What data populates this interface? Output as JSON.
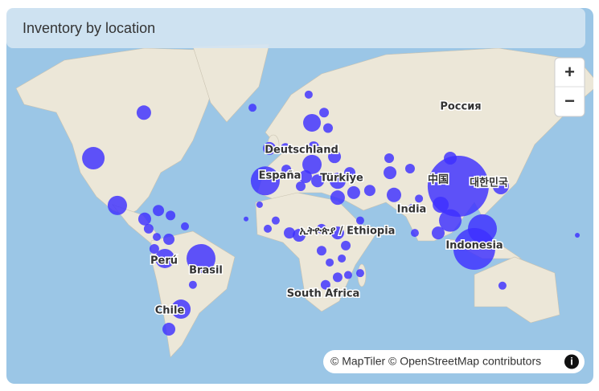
{
  "header": {
    "title": "Inventory by location"
  },
  "controls": {
    "zoom_in": "+",
    "zoom_out": "−",
    "info": "i"
  },
  "attribution": "© MapTiler © OpenStreetMap contributors",
  "map": {
    "labels": [
      "Россия",
      "Deutschland",
      "España",
      "Türkiye",
      "中国",
      "대한민국",
      "India",
      "ኢትዮጵያ / Ethiopia",
      "Indonesia",
      "Perú",
      "Brasil",
      "Chile",
      "South Africa"
    ],
    "bubble_color": "#3d30ff",
    "bubbles": [
      {
        "lon": -84.5,
        "lat": 63.3,
        "size": 9
      },
      {
        "lon": -115,
        "lat": 48,
        "size": 14
      },
      {
        "lon": -100.5,
        "lat": 25.4,
        "size": 12
      },
      {
        "lon": -18.9,
        "lat": 64.6,
        "size": 5
      },
      {
        "lon": 15,
        "lat": 67.8,
        "size": 5
      },
      {
        "lon": 17,
        "lat": 60.4,
        "size": 11
      },
      {
        "lon": 24.3,
        "lat": 63.3,
        "size": 6
      },
      {
        "lon": 26.7,
        "lat": 58.8,
        "size": 6
      },
      {
        "lon": -8.7,
        "lat": 51.8,
        "size": 8
      },
      {
        "lon": 1,
        "lat": 52,
        "size": 6
      },
      {
        "lon": 18,
        "lat": 52.3,
        "size": 7
      },
      {
        "lon": 17,
        "lat": 45.4,
        "size": 12
      },
      {
        "lon": 30.6,
        "lat": 48.6,
        "size": 8
      },
      {
        "lon": -11.2,
        "lat": 38,
        "size": 18
      },
      {
        "lon": 1.5,
        "lat": 43.2,
        "size": 6
      },
      {
        "lon": 13.1,
        "lat": 40,
        "size": 8
      },
      {
        "lon": 10.2,
        "lat": 35.4,
        "size": 6
      },
      {
        "lon": 20.4,
        "lat": 38,
        "size": 8
      },
      {
        "lon": 32.5,
        "lat": 38,
        "size": 10
      },
      {
        "lon": 39.8,
        "lat": 41.8,
        "size": 7
      },
      {
        "lon": 42.2,
        "lat": 32.2,
        "size": 8
      },
      {
        "lon": 32.5,
        "lat": 29.6,
        "size": 9
      },
      {
        "lon": 51.9,
        "lat": 33.3,
        "size": 7
      },
      {
        "lon": 63.6,
        "lat": 48,
        "size": 6
      },
      {
        "lon": 64.1,
        "lat": 41.8,
        "size": 8
      },
      {
        "lon": 66.5,
        "lat": 31,
        "size": 9
      },
      {
        "lon": 76.2,
        "lat": 43.6,
        "size": 6
      },
      {
        "lon": 81.6,
        "lat": 29.1,
        "size": 5
      },
      {
        "lon": 77.7,
        "lat": 23.6,
        "size": 6
      },
      {
        "lon": 79.1,
        "lat": 9.6,
        "size": 5
      },
      {
        "lon": 46.1,
        "lat": 16.9,
        "size": 5
      },
      {
        "lon": 105.3,
        "lat": 35.4,
        "size": 38
      },
      {
        "lon": 100.5,
        "lat": 48,
        "size": 8
      },
      {
        "lon": 131,
        "lat": 35.4,
        "size": 10
      },
      {
        "lon": 94.7,
        "lat": 25.8,
        "size": 10
      },
      {
        "lon": 100.5,
        "lat": 16.9,
        "size": 14
      },
      {
        "lon": 93.2,
        "lat": 9.6,
        "size": 8
      },
      {
        "lon": 119.9,
        "lat": 12.1,
        "size": 18
      },
      {
        "lon": 115,
        "lat": 0,
        "size": 26
      },
      {
        "lon": -22.8,
        "lat": 17.8,
        "size": 3
      },
      {
        "lon": -14.6,
        "lat": 25.8,
        "size": 4
      },
      {
        "lon": -4.9,
        "lat": 16.9,
        "size": 5
      },
      {
        "lon": -9.7,
        "lat": 12.1,
        "size": 5
      },
      {
        "lon": 3.4,
        "lat": 9.6,
        "size": 7
      },
      {
        "lon": 9.2,
        "lat": 8.2,
        "size": 8
      },
      {
        "lon": 22.8,
        "lat": 12.1,
        "size": 6
      },
      {
        "lon": 32.5,
        "lat": 9.6,
        "size": 8
      },
      {
        "lon": 37.4,
        "lat": 2,
        "size": 6
      },
      {
        "lon": 22.8,
        "lat": -1.1,
        "size": 6
      },
      {
        "lon": 27.7,
        "lat": -8.2,
        "size": 5
      },
      {
        "lon": 35,
        "lat": -5.8,
        "size": 5
      },
      {
        "lon": 38.8,
        "lat": -15.6,
        "size": 5
      },
      {
        "lon": 32.5,
        "lat": -16.9,
        "size": 6
      },
      {
        "lon": 25.2,
        "lat": -21.2,
        "size": 6
      },
      {
        "lon": 46.1,
        "lat": -14.5,
        "size": 5
      },
      {
        "lon": -84,
        "lat": 17.8,
        "size": 8
      },
      {
        "lon": -75.7,
        "lat": 22.6,
        "size": 7
      },
      {
        "lon": -68.4,
        "lat": 19.8,
        "size": 6
      },
      {
        "lon": -59.7,
        "lat": 13.5,
        "size": 5
      },
      {
        "lon": -76.7,
        "lat": 7.2,
        "size": 5
      },
      {
        "lon": -69.4,
        "lat": 5.8,
        "size": 7
      },
      {
        "lon": -78.2,
        "lat": 0,
        "size": 6
      },
      {
        "lon": -71.8,
        "lat": -5.8,
        "size": 12
      },
      {
        "lon": -50,
        "lat": -5.8,
        "size": 18
      },
      {
        "lon": -54.9,
        "lat": -21.2,
        "size": 5
      },
      {
        "lon": -62.1,
        "lat": -34.2,
        "size": 12
      },
      {
        "lon": -69.4,
        "lat": -43.6,
        "size": 8
      },
      {
        "lon": 132,
        "lat": -21.7,
        "size": 5
      },
      {
        "lon": 177.2,
        "lat": 8.2,
        "size": 3
      },
      {
        "lon": -81.6,
        "lat": 12.1,
        "size": 6
      }
    ]
  }
}
